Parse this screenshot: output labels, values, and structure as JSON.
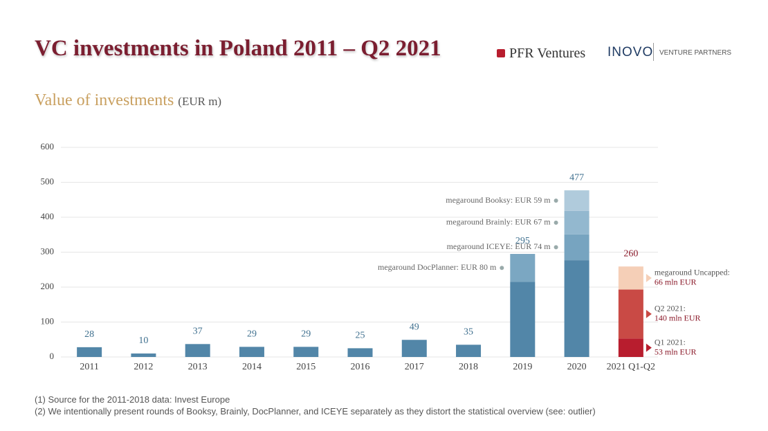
{
  "header": {
    "title": "VC investments in Poland 2011 – Q2 2021",
    "logo1": "PFR Ventures",
    "logo2": "INOVO",
    "logo2_sub": "VENTURE PARTNERS"
  },
  "chart_data": {
    "type": "bar",
    "stacked": true,
    "title": "Value of investments",
    "subtitle": "(EUR m)",
    "categories": [
      "2011",
      "2012",
      "2013",
      "2014",
      "2015",
      "2016",
      "2017",
      "2018",
      "2019",
      "2020",
      "2021 Q1-Q2"
    ],
    "series": [
      {
        "color": "#5286a8",
        "values": [
          28,
          10,
          37,
          29,
          29,
          25,
          49,
          35,
          215,
          277,
          null
        ]
      },
      {
        "name": "Q1 2021:",
        "color": "#b81d2e",
        "values": [
          null,
          null,
          null,
          null,
          null,
          null,
          null,
          null,
          null,
          null,
          53
        ],
        "value_labels": [
          null,
          null,
          null,
          null,
          null,
          null,
          null,
          null,
          null,
          null,
          "53 mln EUR"
        ]
      },
      {
        "name": "Q2 2021:",
        "color": "#c94a45",
        "values": [
          null,
          null,
          null,
          null,
          null,
          null,
          null,
          null,
          null,
          null,
          140
        ],
        "value_labels": [
          null,
          null,
          null,
          null,
          null,
          null,
          null,
          null,
          null,
          null,
          "140 mln EUR"
        ]
      },
      {
        "name": "megaround DocPlanner: EUR 80 m",
        "color": "#7ba7c2",
        "values": [
          null,
          null,
          null,
          null,
          null,
          null,
          null,
          null,
          80,
          null,
          null
        ]
      },
      {
        "name": "megaround ICEYE: EUR 74 m",
        "color": "#77a4c0",
        "values": [
          null,
          null,
          null,
          null,
          null,
          null,
          null,
          null,
          null,
          74,
          null
        ]
      },
      {
        "name": "megaround Brainly: EUR 67 m",
        "color": "#93b8cf",
        "values": [
          null,
          null,
          null,
          null,
          null,
          null,
          null,
          null,
          null,
          67,
          null
        ]
      },
      {
        "name": "megaround Booksy: EUR 59 m",
        "color": "#b0cbdc",
        "values": [
          null,
          null,
          null,
          null,
          null,
          null,
          null,
          null,
          null,
          59,
          null
        ]
      },
      {
        "name": "megaround Uncapped:",
        "color": "#f5cfb7",
        "values": [
          null,
          null,
          null,
          null,
          null,
          null,
          null,
          null,
          null,
          null,
          66
        ],
        "value_labels": [
          null,
          null,
          null,
          null,
          null,
          null,
          null,
          null,
          null,
          null,
          "66 mln EUR"
        ]
      }
    ],
    "totals": [
      28,
      10,
      37,
      29,
      29,
      25,
      49,
      35,
      295,
      477,
      260
    ],
    "total_label_colors": [
      "#3e6f8e",
      "#3e6f8e",
      "#3e6f8e",
      "#3e6f8e",
      "#3e6f8e",
      "#3e6f8e",
      "#3e6f8e",
      "#3e6f8e",
      "#3e6f8e",
      "#3e6f8e",
      "#8b1a2a"
    ],
    "ylim": [
      0,
      600
    ],
    "yticks": [
      0,
      100,
      200,
      300,
      400,
      500,
      600
    ],
    "grid": true
  },
  "footnotes": [
    "(1) Source for the 2011-2018 data: Invest Europe",
    "(2) We intentionally present rounds of Booksy, Brainly, DocPlanner, and ICEYE separately as they distort the statistical overview (see: outlier)"
  ]
}
